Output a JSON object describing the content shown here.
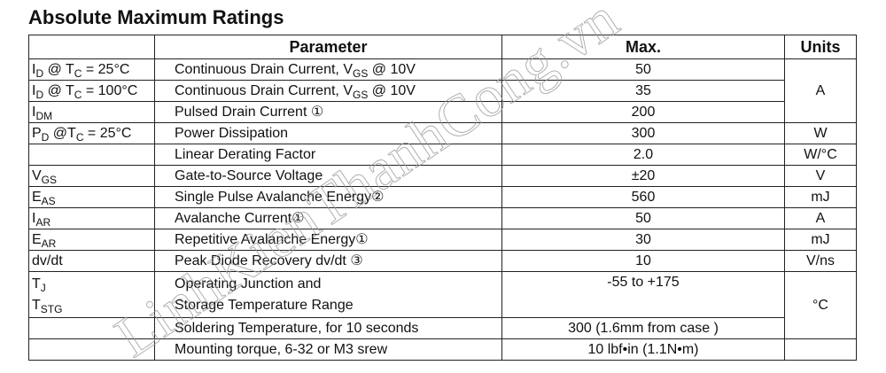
{
  "title": "Absolute Maximum Ratings",
  "headers": {
    "symbol": "",
    "parameter": "Parameter",
    "max": "Max.",
    "units": "Units"
  },
  "rows": [
    {
      "symbol": [
        {
          "t": "I"
        },
        {
          "sub": "D"
        },
        {
          "t": " @ T"
        },
        {
          "sub": "C"
        },
        {
          "t": " = 25°C"
        }
      ],
      "parameter": [
        {
          "t": "Continuous Drain Current, V"
        },
        {
          "sub": "GS"
        },
        {
          "t": " @ 10V"
        }
      ],
      "max": "50"
    },
    {
      "symbol": [
        {
          "t": "I"
        },
        {
          "sub": "D"
        },
        {
          "t": " @ T"
        },
        {
          "sub": "C"
        },
        {
          "t": " = 100°C"
        }
      ],
      "parameter": [
        {
          "t": "Continuous Drain Current, V"
        },
        {
          "sub": "GS"
        },
        {
          "t": " @ 10V"
        }
      ],
      "max": "35"
    },
    {
      "symbol": [
        {
          "t": "I"
        },
        {
          "sub": "DM"
        }
      ],
      "parameter": [
        {
          "t": "Pulsed Drain Current ①"
        }
      ],
      "max": "200"
    },
    {
      "symbol": [
        {
          "t": "P"
        },
        {
          "sub": "D"
        },
        {
          "t": " @T"
        },
        {
          "sub": "C"
        },
        {
          "t": " = 25°C"
        }
      ],
      "parameter": [
        {
          "t": "Power Dissipation"
        }
      ],
      "max": "300"
    },
    {
      "symbol": [],
      "parameter": [
        {
          "t": "Linear Derating Factor"
        }
      ],
      "max": "2.0"
    },
    {
      "symbol": [
        {
          "t": "V"
        },
        {
          "sub": "GS"
        }
      ],
      "parameter": [
        {
          "t": "Gate-to-Source Voltage"
        }
      ],
      "max": "±20"
    },
    {
      "symbol": [
        {
          "t": "E"
        },
        {
          "sub": "AS"
        }
      ],
      "parameter": [
        {
          "t": "Single Pulse Avalanche Energy②"
        }
      ],
      "max": "560"
    },
    {
      "symbol": [
        {
          "t": "I"
        },
        {
          "sub": "AR"
        }
      ],
      "parameter": [
        {
          "t": "Avalanche Current①"
        }
      ],
      "max": "50"
    },
    {
      "symbol": [
        {
          "t": "E"
        },
        {
          "sub": "AR"
        }
      ],
      "parameter": [
        {
          "t": "Repetitive Avalanche Energy①"
        }
      ],
      "max": "30"
    },
    {
      "symbol": [
        {
          "t": "dv/dt"
        }
      ],
      "parameter": [
        {
          "t": "Peak Diode Recovery dv/dt ③"
        }
      ],
      "max": "10"
    },
    {
      "symbol_lines": [
        [
          {
            "t": "T"
          },
          {
            "sub": "J"
          }
        ],
        [
          {
            "t": "T"
          },
          {
            "sub": "STG"
          }
        ]
      ],
      "parameter_lines": [
        "Operating Junction and",
        "Storage Temperature Range"
      ],
      "max": "-55 to +175",
      "tall": true
    },
    {
      "symbol": [],
      "parameter": [
        {
          "t": "Soldering Temperature, for 10 seconds"
        }
      ],
      "max": "300 (1.6mm from case )"
    },
    {
      "symbol": [],
      "parameter": [
        {
          "t": "Mounting torque, 6-32 or M3 srew"
        }
      ],
      "max": "10 lbf•in (1.1N•m)"
    }
  ],
  "units": [
    {
      "label": "A",
      "rows": 3
    },
    {
      "label": "W",
      "rows": 1
    },
    {
      "label": "W/°C",
      "rows": 1
    },
    {
      "label": "V",
      "rows": 1
    },
    {
      "label": "mJ",
      "rows": 1
    },
    {
      "label": "A",
      "rows": 1
    },
    {
      "label": "mJ",
      "rows": 1
    },
    {
      "label": "V/ns",
      "rows": 1
    },
    {
      "label": "°C",
      "rows": 2
    },
    {
      "label": "",
      "rows": 1
    }
  ],
  "watermark": {
    "text": "LinhKienThanhCong.vn",
    "color": "#9a9a9a"
  }
}
